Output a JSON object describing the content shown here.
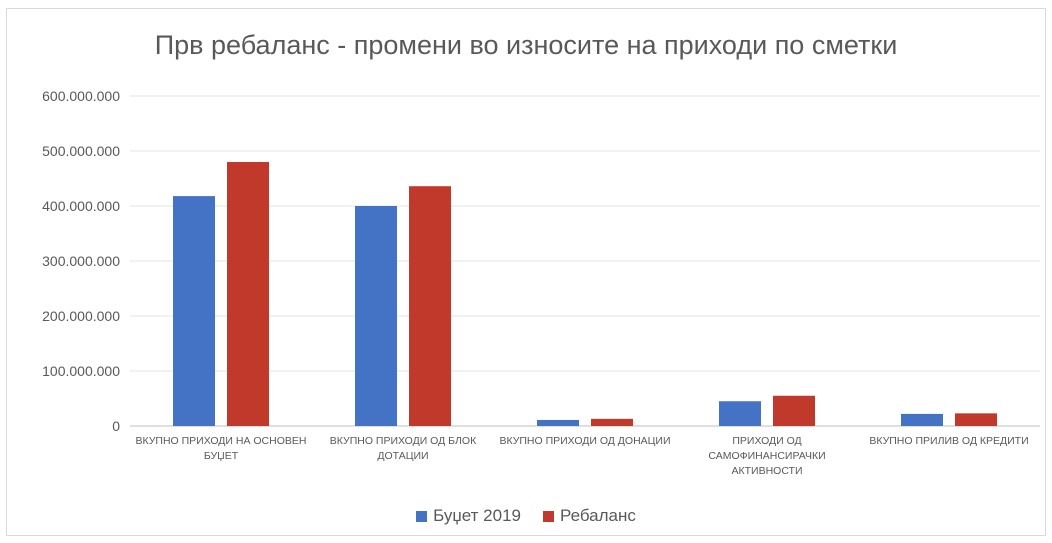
{
  "chart_data": {
    "type": "bar",
    "title": "Прв ребаланс - промени во износите на приходи по сметки",
    "categories": [
      [
        "ВКУПНО ПРИХОДИ НА ОСНОВЕН",
        "БУЏЕТ"
      ],
      [
        "ВКУПНО ПРИХОДИ ОД БЛОК",
        "ДОТАЦИИ"
      ],
      [
        "ВКУПНО ПРИХОДИ ОД ДОНАЦИИ"
      ],
      [
        "ПРИХОДИ ОД",
        "САМОФИНАНСИРАЧКИ",
        "АКТИВНОСТИ"
      ],
      [
        "ВКУПНО ПРИЛИВ ОД КРЕДИТИ"
      ]
    ],
    "series": [
      {
        "name": "Буџет 2019",
        "color": "#4472c4",
        "values": [
          418000000,
          400000000,
          11000000,
          45000000,
          22000000
        ]
      },
      {
        "name": "Ребаланс",
        "color": "#c0392b",
        "values": [
          480000000,
          436000000,
          13000000,
          55000000,
          23000000
        ]
      }
    ],
    "ylim": [
      0,
      600000000
    ],
    "yticks": [
      0,
      100000000,
      200000000,
      300000000,
      400000000,
      500000000,
      600000000
    ],
    "ytick_labels": [
      "0",
      "100.000.000",
      "200.000.000",
      "300.000.000",
      "400.000.000",
      "500.000.000",
      "600.000.000"
    ],
    "grid": true,
    "legend_position": "bottom"
  }
}
